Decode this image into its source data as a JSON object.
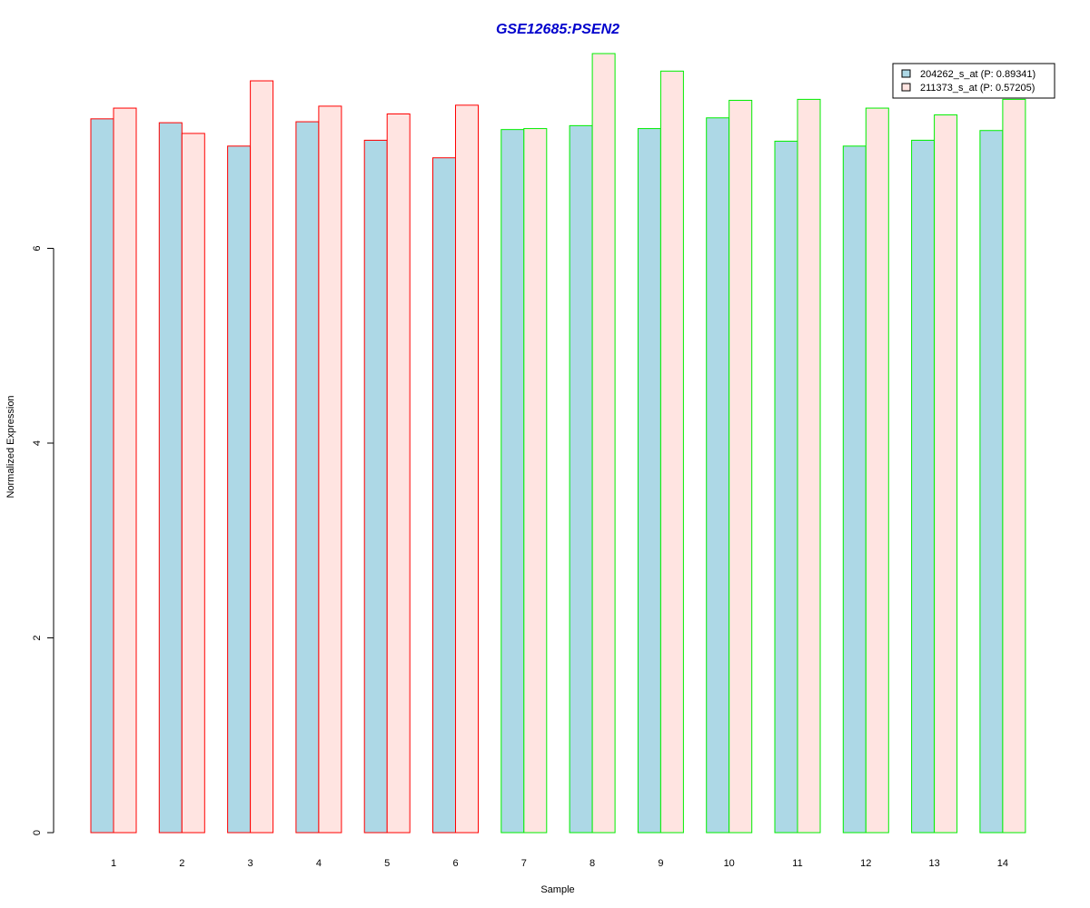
{
  "chart_data": {
    "type": "bar",
    "title": "GSE12685:PSEN2",
    "xlabel": "Sample",
    "ylabel": "Normalized Expression",
    "ylim": [
      0,
      8
    ],
    "yticks": [
      0,
      2,
      4,
      6
    ],
    "categories": [
      "1",
      "2",
      "3",
      "4",
      "5",
      "6",
      "7",
      "8",
      "9",
      "10",
      "11",
      "12",
      "13",
      "14"
    ],
    "group_border_colors": [
      "#ff0000",
      "#ff0000",
      "#ff0000",
      "#ff0000",
      "#ff0000",
      "#ff0000",
      "#00ee00",
      "#00ee00",
      "#00ee00",
      "#00ee00",
      "#00ee00",
      "#00ee00",
      "#00ee00",
      "#00ee00"
    ],
    "series": [
      {
        "name": "204262_s_at (P: 0.89341)",
        "fill": "#add8e6",
        "values": [
          7.33,
          7.29,
          7.05,
          7.3,
          7.11,
          6.93,
          7.22,
          7.26,
          7.23,
          7.34,
          7.1,
          7.05,
          7.11,
          7.21
        ]
      },
      {
        "name": "211373_s_at (P: 0.57205)",
        "fill": "#ffe4e1",
        "values": [
          7.44,
          7.18,
          7.72,
          7.46,
          7.38,
          7.47,
          7.23,
          8.0,
          7.82,
          7.52,
          7.53,
          7.44,
          7.37,
          7.53
        ]
      }
    ],
    "legend_position": "top-right",
    "grid": false,
    "title_color": "#0000cc"
  }
}
